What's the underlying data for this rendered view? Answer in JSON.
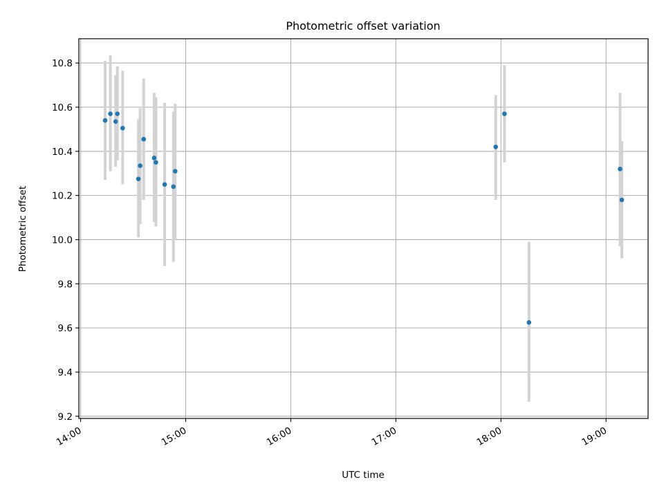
{
  "chart_data": {
    "type": "scatter",
    "title": "Photometric offset variation",
    "xlabel": "UTC time",
    "ylabel": "Photometric offset",
    "x_tick_labels": [
      "14:00",
      "15:00",
      "16:00",
      "17:00",
      "18:00",
      "19:00"
    ],
    "x_tick_values": [
      "14:00",
      "15:00",
      "16:00",
      "17:00",
      "18:00",
      "19:00"
    ],
    "xlim": [
      "13:59",
      "19:24"
    ],
    "y_tick_labels": [
      "9.2",
      "9.4",
      "9.6",
      "9.8",
      "10.0",
      "10.2",
      "10.4",
      "10.6",
      "10.8"
    ],
    "y_tick_values": [
      9.2,
      9.4,
      9.6,
      9.8,
      10.0,
      10.2,
      10.4,
      10.6,
      10.8
    ],
    "ylim": [
      9.19,
      10.91
    ],
    "grid": true,
    "x_tick_rotation": "30 degrees",
    "point_color": "#1f77b4",
    "errorbar_color": "#d3d3d3",
    "series": [
      {
        "x": [
          "14:14",
          "14:17",
          "14:20",
          "14:21",
          "14:24",
          "14:33",
          "14:34",
          "14:36",
          "14:42",
          "14:43",
          "14:48",
          "14:53",
          "14:54",
          "17:57",
          "18:02",
          "18:16",
          "19:08",
          "19:09"
        ],
        "y": [
          10.54,
          10.57,
          10.535,
          10.57,
          10.505,
          10.275,
          10.335,
          10.455,
          10.37,
          10.35,
          10.25,
          10.24,
          10.31,
          10.42,
          10.57,
          9.625,
          10.32,
          10.18
        ],
        "yerr_low": [
          10.27,
          10.31,
          10.33,
          10.36,
          10.25,
          10.01,
          10.07,
          10.18,
          10.08,
          10.06,
          9.88,
          9.9,
          10.0,
          10.18,
          10.35,
          9.265,
          9.97,
          9.915
        ],
        "yerr_high": [
          10.81,
          10.835,
          10.745,
          10.785,
          10.765,
          10.545,
          10.595,
          10.73,
          10.665,
          10.645,
          10.62,
          10.58,
          10.615,
          10.655,
          10.79,
          9.99,
          10.665,
          10.445
        ]
      }
    ]
  }
}
